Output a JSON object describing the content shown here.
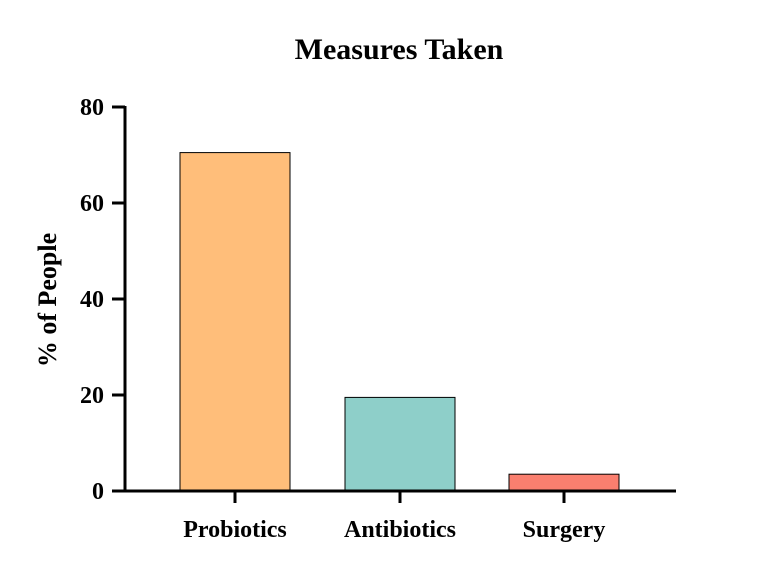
{
  "chart_data": {
    "type": "bar",
    "title": "Measures Taken",
    "xlabel": "",
    "ylabel": "% of People",
    "categories": [
      "Probiotics",
      "Antibiotics",
      "Surgery"
    ],
    "values": [
      70.5,
      19.5,
      3.5
    ],
    "bar_colors": [
      "#FFBE7A",
      "#8ECFC9",
      "#FA7F6F"
    ],
    "ylim": [
      0,
      80
    ],
    "yticks": [
      "0",
      "20",
      "40",
      "60",
      "80"
    ],
    "grid": false,
    "legend": "none"
  }
}
